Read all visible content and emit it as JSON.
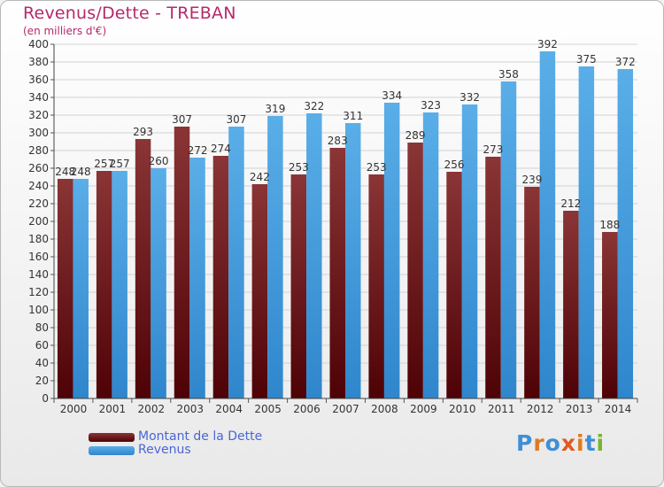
{
  "title": "Revenus/Dette - TREBAN",
  "subtitle": "(en milliers d'€)",
  "colors": {
    "title": "#b5296b",
    "debt_top": "#8a3536",
    "debt_bottom": "#4e0206",
    "revenue_top": "#5aaee8",
    "revenue_bottom": "#2f86cc",
    "legend_text": "#4a66d6"
  },
  "logo": {
    "text": "Proxiti",
    "letter_colors": [
      "#3f8fd6",
      "#e07a1f",
      "#3f8fd6",
      "#e05a1f",
      "#e07a1f",
      "#3f8fd6",
      "#79b52d"
    ]
  },
  "chart_data": {
    "type": "bar",
    "title": "Revenus/Dette - TREBAN",
    "subtitle": "(en milliers d'€)",
    "categories": [
      "2000",
      "2001",
      "2002",
      "2003",
      "2004",
      "2005",
      "2006",
      "2007",
      "2008",
      "2009",
      "2010",
      "2011",
      "2012",
      "2013",
      "2014"
    ],
    "series": [
      {
        "name": "Montant de la Dette",
        "values": [
          248,
          257,
          293,
          307,
          274,
          242,
          253,
          283,
          253,
          289,
          256,
          273,
          239,
          212,
          188
        ]
      },
      {
        "name": "Revenus",
        "values": [
          248,
          257,
          260,
          272,
          307,
          319,
          322,
          311,
          334,
          323,
          332,
          358,
          392,
          375,
          372
        ]
      }
    ],
    "ylim": [
      0,
      400
    ],
    "ytick_step": 20,
    "grid": true,
    "legend_position": "bottom-left"
  }
}
